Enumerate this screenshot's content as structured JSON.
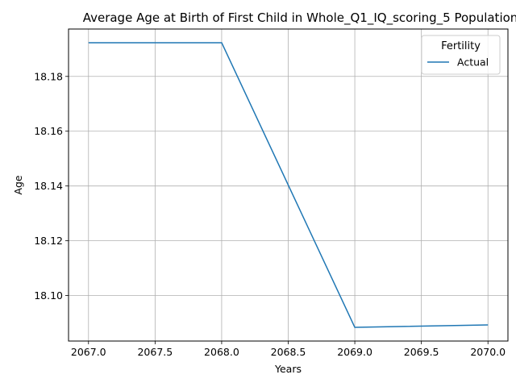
{
  "chart_data": {
    "type": "line",
    "title": "Average Age at Birth of First Child in Whole_Q1_IQ_scoring_5 Population",
    "xlabel": "Years",
    "ylabel": "Age",
    "x": [
      2067,
      2068,
      2069,
      2070
    ],
    "series": [
      {
        "name": "Actual",
        "color": "#1f77b4",
        "values": [
          18.1923,
          18.1923,
          18.0884,
          18.0893
        ]
      }
    ],
    "xlim": [
      2066.85,
      2070.15
    ],
    "ylim": [
      18.0834,
      18.1973
    ],
    "xticks": [
      "2067.0",
      "2067.5",
      "2068.0",
      "2068.5",
      "2069.0",
      "2069.5",
      "2070.0"
    ],
    "yticks": [
      "18.10",
      "18.12",
      "18.14",
      "18.16",
      "18.18"
    ],
    "grid": true,
    "legend": {
      "title": "Fertility",
      "placement": "top-right"
    }
  }
}
